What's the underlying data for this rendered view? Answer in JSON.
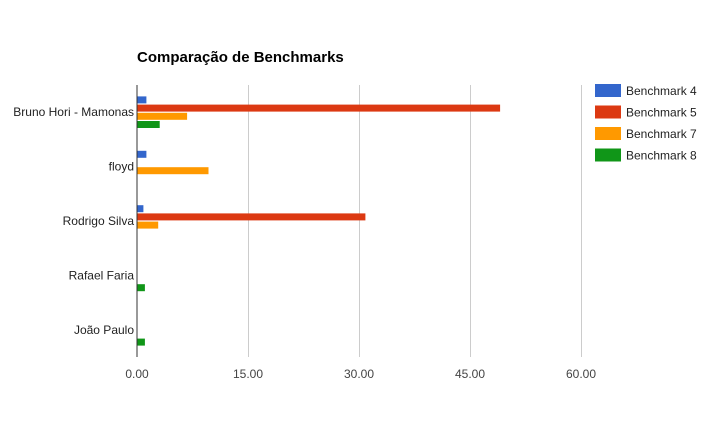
{
  "chart_data": {
    "type": "bar",
    "orientation": "horizontal",
    "title": "Comparação de Benchmarks",
    "categories": [
      "Bruno Hori - Mamonas",
      "floyd",
      "Rodrigo Silva",
      "Rafael Faria",
      "João Paulo"
    ],
    "series": [
      {
        "name": "Benchmark 4",
        "color": "#3366cc",
        "values": [
          1.2,
          1.2,
          0.8,
          0,
          0
        ]
      },
      {
        "name": "Benchmark 5",
        "color": "#dc3912",
        "values": [
          49.0,
          0,
          30.8,
          0,
          0
        ]
      },
      {
        "name": "Benchmark 7",
        "color": "#ff9900",
        "values": [
          6.7,
          9.6,
          2.8,
          0,
          0
        ]
      },
      {
        "name": "Benchmark 8",
        "color": "#109618",
        "values": [
          3.0,
          0,
          0,
          1.0,
          1.0
        ]
      }
    ],
    "xlim": [
      0,
      60
    ],
    "xticks": [
      "0.00",
      "15.00",
      "30.00",
      "45.00",
      "60.00"
    ],
    "xtick_values": [
      0,
      15,
      30,
      45,
      60
    ],
    "grid": true,
    "legend_position": "right"
  }
}
